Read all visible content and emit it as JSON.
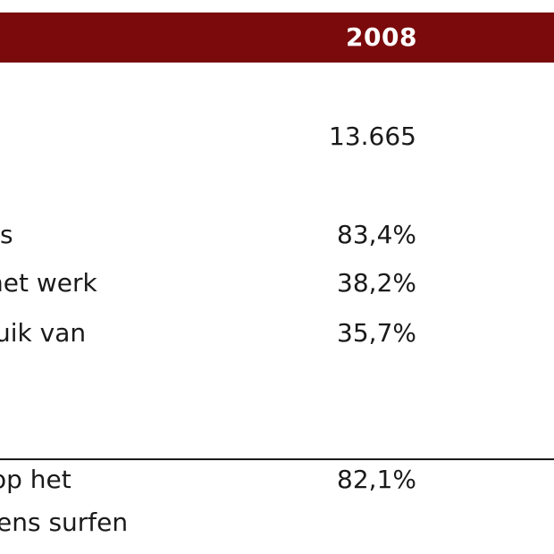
{
  "header": {
    "year": "2008"
  },
  "rows": [
    {
      "label": "",
      "value": "13.665"
    },
    {
      "label": "s",
      "value": "83,4%"
    },
    {
      "label": "het werk",
      "value": "38,2%"
    },
    {
      "label": "uik van",
      "value": "35,7%"
    },
    {
      "label": "op het",
      "value": "82,1%"
    },
    {
      "label": "ens surfen",
      "value": ""
    }
  ],
  "colors": {
    "header_background": "#7a0a0c",
    "header_text": "#ffffff",
    "body_text": "#1a1a1a"
  }
}
